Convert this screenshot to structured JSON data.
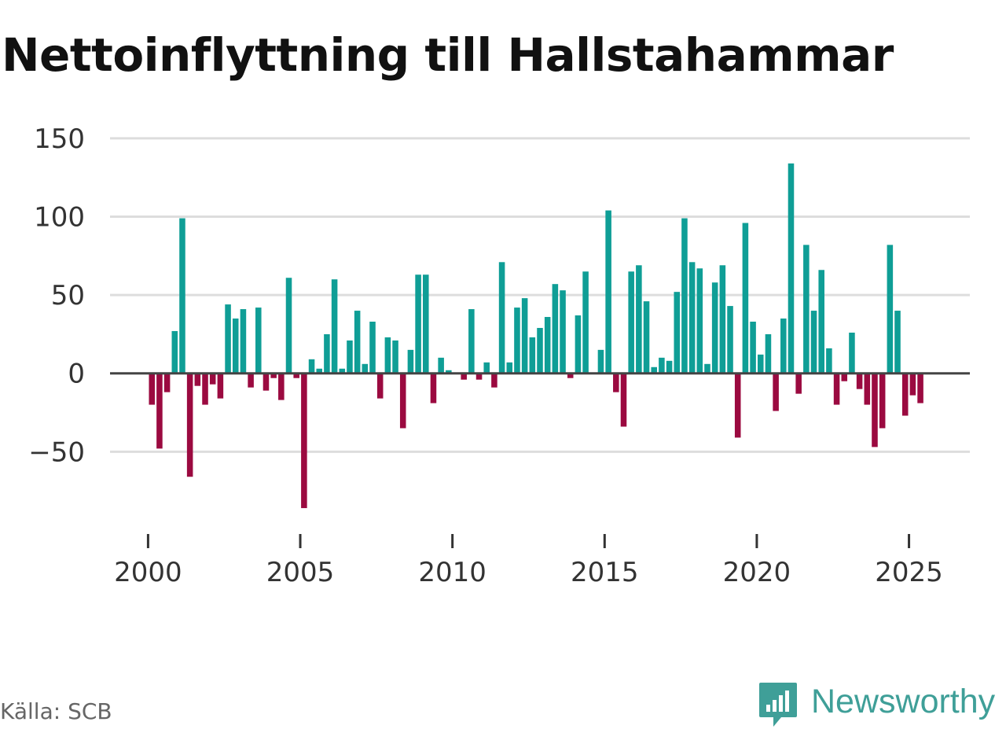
{
  "chart_data": {
    "type": "bar",
    "title": "Nettoinflyttning till Hallstahammar",
    "source": "Källa: SCB",
    "brand": "Newsworthy",
    "xlabel": "",
    "ylabel": "",
    "ylim": [
      -95,
      160
    ],
    "xlim": [
      1998.75,
      2027.0
    ],
    "y_ticks": [
      150,
      100,
      50,
      0,
      -50
    ],
    "y_tick_labels": [
      "150",
      "100",
      "50",
      "0",
      "−50"
    ],
    "x_ticks": [
      2000,
      2005,
      2010,
      2015,
      2020,
      2025
    ],
    "x_tick_labels": [
      "2000",
      "2005",
      "2010",
      "2015",
      "2020",
      "2025"
    ],
    "colors": {
      "positive": "#0f9e96",
      "negative": "#9b0a40",
      "grid": "#dddddd",
      "zero_line": "#444444",
      "axis_tick": "#333333",
      "brand": "#3f9f98"
    },
    "start": {
      "year": 2000,
      "quarter": 1
    },
    "values": [
      -20,
      -48,
      -12,
      27,
      99,
      -66,
      -8,
      -20,
      -7,
      -16,
      44,
      35,
      41,
      -9,
      42,
      -11,
      -3,
      -17,
      61,
      -3,
      -86,
      9,
      3,
      25,
      60,
      3,
      21,
      40,
      6,
      33,
      -16,
      23,
      21,
      -35,
      15,
      63,
      63,
      -19,
      10,
      2,
      0,
      -4,
      41,
      -4,
      7,
      -9,
      71,
      7,
      42,
      48,
      23,
      29,
      36,
      57,
      53,
      -3,
      37,
      65,
      0,
      15,
      104,
      -12,
      -34,
      65,
      69,
      46,
      4,
      10,
      8,
      52,
      99,
      71,
      67,
      6,
      58,
      69,
      43,
      -41,
      96,
      33,
      12,
      25,
      -24,
      35,
      134,
      -13,
      82,
      40,
      66,
      16,
      -20,
      -5,
      26,
      -10,
      -20,
      -47,
      -35,
      82,
      40,
      -27,
      -14,
      -19
    ]
  }
}
